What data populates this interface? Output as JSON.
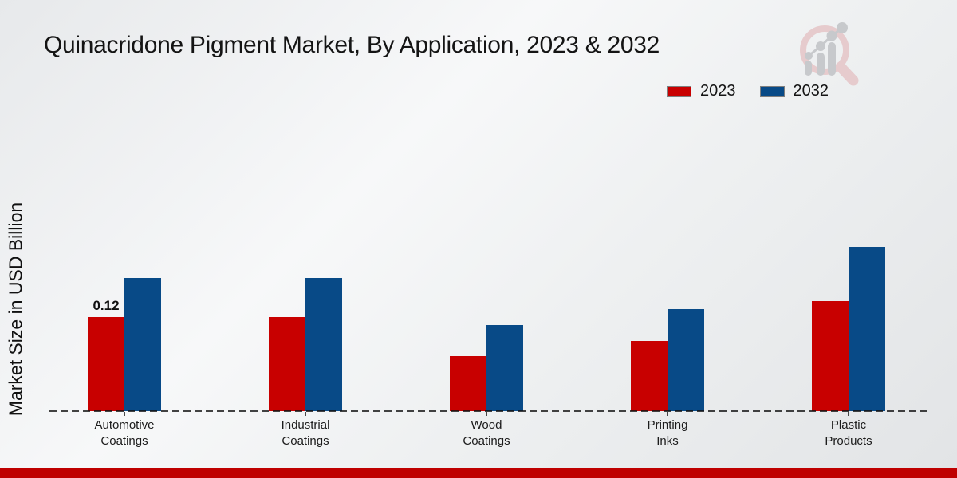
{
  "title": "Quinacridone Pigment Market, By Application, 2023 & 2032",
  "chart_data": {
    "type": "bar",
    "title": "Quinacridone Pigment Market, By Application, 2023 & 2032",
    "xlabel": "",
    "ylabel": "Market Size in USD Billion",
    "categories": [
      "Automotive Coatings",
      "Industrial Coatings",
      "Wood Coatings",
      "Printing Inks",
      "Plastic Products"
    ],
    "categories_display": [
      "Automotive\nCoatings",
      "Industrial\nCoatings",
      "Wood\nCoatings",
      "Printing\nInks",
      "Plastic\nProducts"
    ],
    "series": [
      {
        "name": "2023",
        "color": "#c80000",
        "values": [
          0.12,
          0.12,
          0.07,
          0.09,
          0.14
        ]
      },
      {
        "name": "2032",
        "color": "#084a87",
        "values": [
          0.17,
          0.17,
          0.11,
          0.13,
          0.21
        ]
      }
    ],
    "annotations": [
      {
        "category_index": 0,
        "series_index": 0,
        "text": "0.12"
      }
    ],
    "ylim": [
      0,
      0.25
    ],
    "grid": false,
    "legend_position": "top-right",
    "zero_line": "dashed"
  },
  "colors": {
    "bar_2023": "#c80000",
    "bar_2032": "#084a87",
    "footer_bar": "#bf0000",
    "legend_swatch_border": "#7f7f7f",
    "logo_pink": "#e6cbcd",
    "logo_gray": "#c7c9cc"
  }
}
